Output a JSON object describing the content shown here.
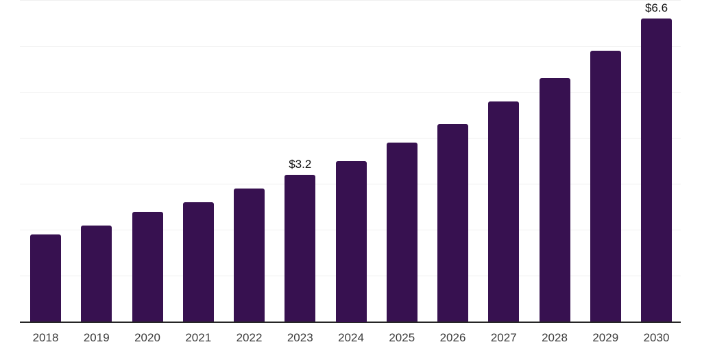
{
  "chart_data": {
    "type": "bar",
    "title": "",
    "xlabel": "",
    "ylabel": "",
    "categories": [
      "2018",
      "2019",
      "2020",
      "2021",
      "2022",
      "2023",
      "2024",
      "2025",
      "2026",
      "2027",
      "2028",
      "2029",
      "2030"
    ],
    "values": [
      1.9,
      2.1,
      2.4,
      2.6,
      2.9,
      3.2,
      3.5,
      3.9,
      4.3,
      4.8,
      5.3,
      5.9,
      6.6
    ],
    "bar_labels": [
      "",
      "",
      "",
      "",
      "",
      "$3.2",
      "",
      "",
      "",
      "",
      "",
      "",
      "$6.6"
    ],
    "ylim": [
      0,
      7
    ],
    "gridline_step": 1,
    "grid": "horizontal",
    "legend": "none",
    "colors": {
      "bar": "#371150",
      "gridline": "#efefef",
      "axis_line": "#262626",
      "tick_label": "#3b3b3b",
      "value_label": "#111111",
      "background": "#ffffff"
    }
  }
}
